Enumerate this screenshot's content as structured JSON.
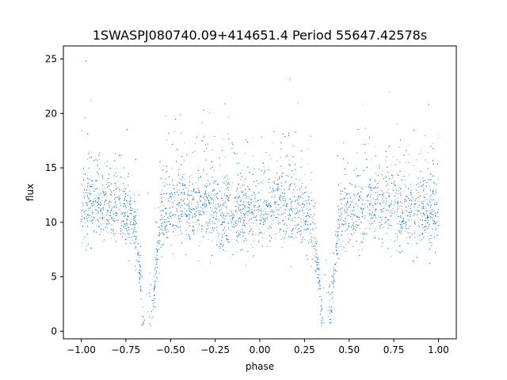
{
  "chart_data": {
    "type": "scatter",
    "title": "1SWASPJ080740.09+414651.4 Period 55647.42578s",
    "xlabel": "phase",
    "ylabel": "flux",
    "xlim": [
      -1.1,
      1.1
    ],
    "ylim": [
      -0.7,
      26.2
    ],
    "xticks": [
      -1.0,
      -0.75,
      -0.5,
      -0.25,
      0.0,
      0.25,
      0.5,
      0.75,
      1.0
    ],
    "xtick_labels": [
      "−1.00",
      "−0.75",
      "−0.50",
      "−0.25",
      "0.00",
      "0.25",
      "0.50",
      "0.75",
      "1.00"
    ],
    "yticks": [
      0,
      5,
      10,
      15,
      20,
      25
    ],
    "ytick_labels": [
      "0",
      "5",
      "10",
      "15",
      "20",
      "25"
    ],
    "grid": false,
    "legend": "none",
    "point_color": "#1f77b4",
    "series": [
      {
        "phase_range": [
          -1.0,
          1.0
        ],
        "baseline_flux": 10.5,
        "primary_minimum": {
          "phase": -0.63,
          "flux": 4.5
        },
        "secondary_minimum": {
          "phase": 0.37,
          "flux": 4.5
        },
        "maxima_flux": 11.5,
        "scatter_range": [
          0.5,
          25.0
        ]
      }
    ]
  }
}
